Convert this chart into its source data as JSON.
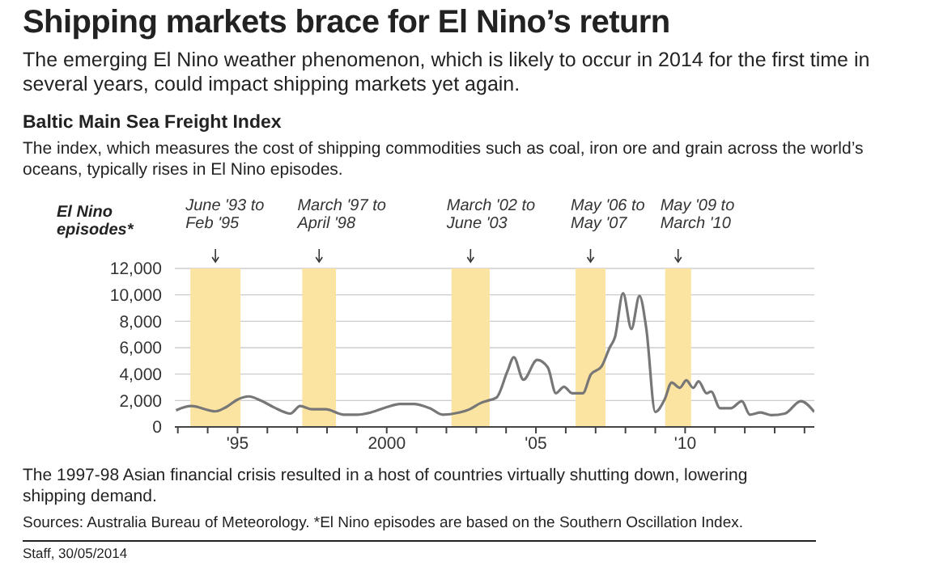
{
  "chart_data": {
    "type": "line",
    "title": "Shipping markets brace for El Nino’s return",
    "subtitle": "The emerging El Nino weather phenomenon, which is likely to occur in 2014 for the first time in several years, could impact shipping markets yet again.",
    "annotations": [
      "Baltic Main Sea Freight Index",
      "The index, which measures the cost of shipping commodities such as coal, iron ore and grain across the world’s oceans, typically rises in El Nino episodes.",
      "El Nino episodes*",
      "The 1997-98 Asian financial crisis resulted in a host of countries virtually shutting down, lowering shipping demand.",
      "Sources: Australia Bureau of Meteorology. *El Nino episodes are based on the Southern Oscillation Index.",
      "Staff, 30/05/2014"
    ],
    "x": [
      1992.94,
      1993.45,
      1994.26,
      1994.62,
      1995.0,
      1995.38,
      1995.79,
      1996.24,
      1996.77,
      1997.1,
      1997.5,
      1997.95,
      1998.57,
      1999.0,
      1999.46,
      2000.0,
      2000.44,
      2000.9,
      2001.44,
      2001.88,
      2002.42,
      2002.78,
      2003.14,
      2003.32,
      2003.68,
      2004.04,
      2004.26,
      2004.58,
      2005.04,
      2005.4,
      2005.67,
      2005.94,
      2006.21,
      2006.57,
      2006.84,
      2007.2,
      2007.47,
      2007.65,
      2007.92,
      2008.2,
      2008.47,
      2008.7,
      2009.0,
      2009.31,
      2009.55,
      2009.82,
      2010.04,
      2010.27,
      2010.45,
      2010.72,
      2010.87,
      2011.17,
      2011.53,
      2011.9,
      2012.17,
      2012.53,
      2012.89,
      2013.34,
      2013.88,
      2014.33
    ],
    "series": [
      {
        "color": "#777777",
        "values": [
          1260,
          1580,
          1180,
          1500,
          2070,
          2310,
          1990,
          1460,
          1010,
          1580,
          1340,
          1340,
          930,
          930,
          1090,
          1500,
          1740,
          1740,
          1420,
          930,
          1090,
          1340,
          1800,
          1950,
          2230,
          4180,
          5270,
          3570,
          5070,
          4500,
          2550,
          3040,
          2550,
          2550,
          3970,
          4580,
          6000,
          6810,
          10130,
          7420,
          9930,
          7420,
          1130,
          2070,
          3360,
          2960,
          3530,
          2960,
          3450,
          2550,
          2680,
          1420,
          1420,
          1950,
          930,
          1090,
          890,
          1010,
          1950,
          1130
        ]
      }
    ],
    "xlim": [
      1992.9,
      2014.33
    ],
    "xticks": [
      {
        "value": 1993,
        "label": null
      },
      {
        "value": 1994,
        "label": null
      },
      {
        "value": 1995,
        "label": "'95"
      },
      {
        "value": 1996,
        "label": null
      },
      {
        "value": 1997,
        "label": null
      },
      {
        "value": 1998,
        "label": null
      },
      {
        "value": 1999,
        "label": null
      },
      {
        "value": 2000,
        "label": "2000"
      },
      {
        "value": 2001,
        "label": null
      },
      {
        "value": 2002,
        "label": null
      },
      {
        "value": 2003,
        "label": null
      },
      {
        "value": 2004,
        "label": null
      },
      {
        "value": 2005,
        "label": "'05"
      },
      {
        "value": 2006,
        "label": null
      },
      {
        "value": 2007,
        "label": null
      },
      {
        "value": 2008,
        "label": null
      },
      {
        "value": 2009,
        "label": null
      },
      {
        "value": 2010,
        "label": "'10"
      },
      {
        "value": 2011,
        "label": null
      },
      {
        "value": 2012,
        "label": null
      },
      {
        "value": 2013,
        "label": null
      },
      {
        "value": 2014,
        "label": null
      }
    ],
    "ylim": [
      0,
      12000
    ],
    "yticks": [
      {
        "value": 0,
        "label": "0"
      },
      {
        "value": 2000,
        "label": "2,000"
      },
      {
        "value": 4000,
        "label": "4,000"
      },
      {
        "value": 6000,
        "label": "6,000"
      },
      {
        "value": 8000,
        "label": "8,000"
      },
      {
        "value": 10000,
        "label": "10,000"
      },
      {
        "value": 12000,
        "label": "12,000"
      }
    ],
    "bands": [
      {
        "axis": "x",
        "from": 1993.42,
        "to": 1995.1,
        "label": "June '93 to Feb '95",
        "color": "#fbe3a1"
      },
      {
        "axis": "x",
        "from": 1997.17,
        "to": 1998.3,
        "label": "March '97 to April '98",
        "color": "#fbe3a1"
      },
      {
        "axis": "x",
        "from": 2002.17,
        "to": 2003.45,
        "label": "March '02 to June '03",
        "color": "#fbe3a1"
      },
      {
        "axis": "x",
        "from": 2006.33,
        "to": 2007.33,
        "label": "May '06 to May '07",
        "color": "#fbe3a1"
      },
      {
        "axis": "x",
        "from": 2009.33,
        "to": 2010.2,
        "label": "May '09 to March '10",
        "color": "#fbe3a1"
      }
    ],
    "grid": "y",
    "legend": false,
    "marker": "none",
    "line_style": "solid"
  }
}
